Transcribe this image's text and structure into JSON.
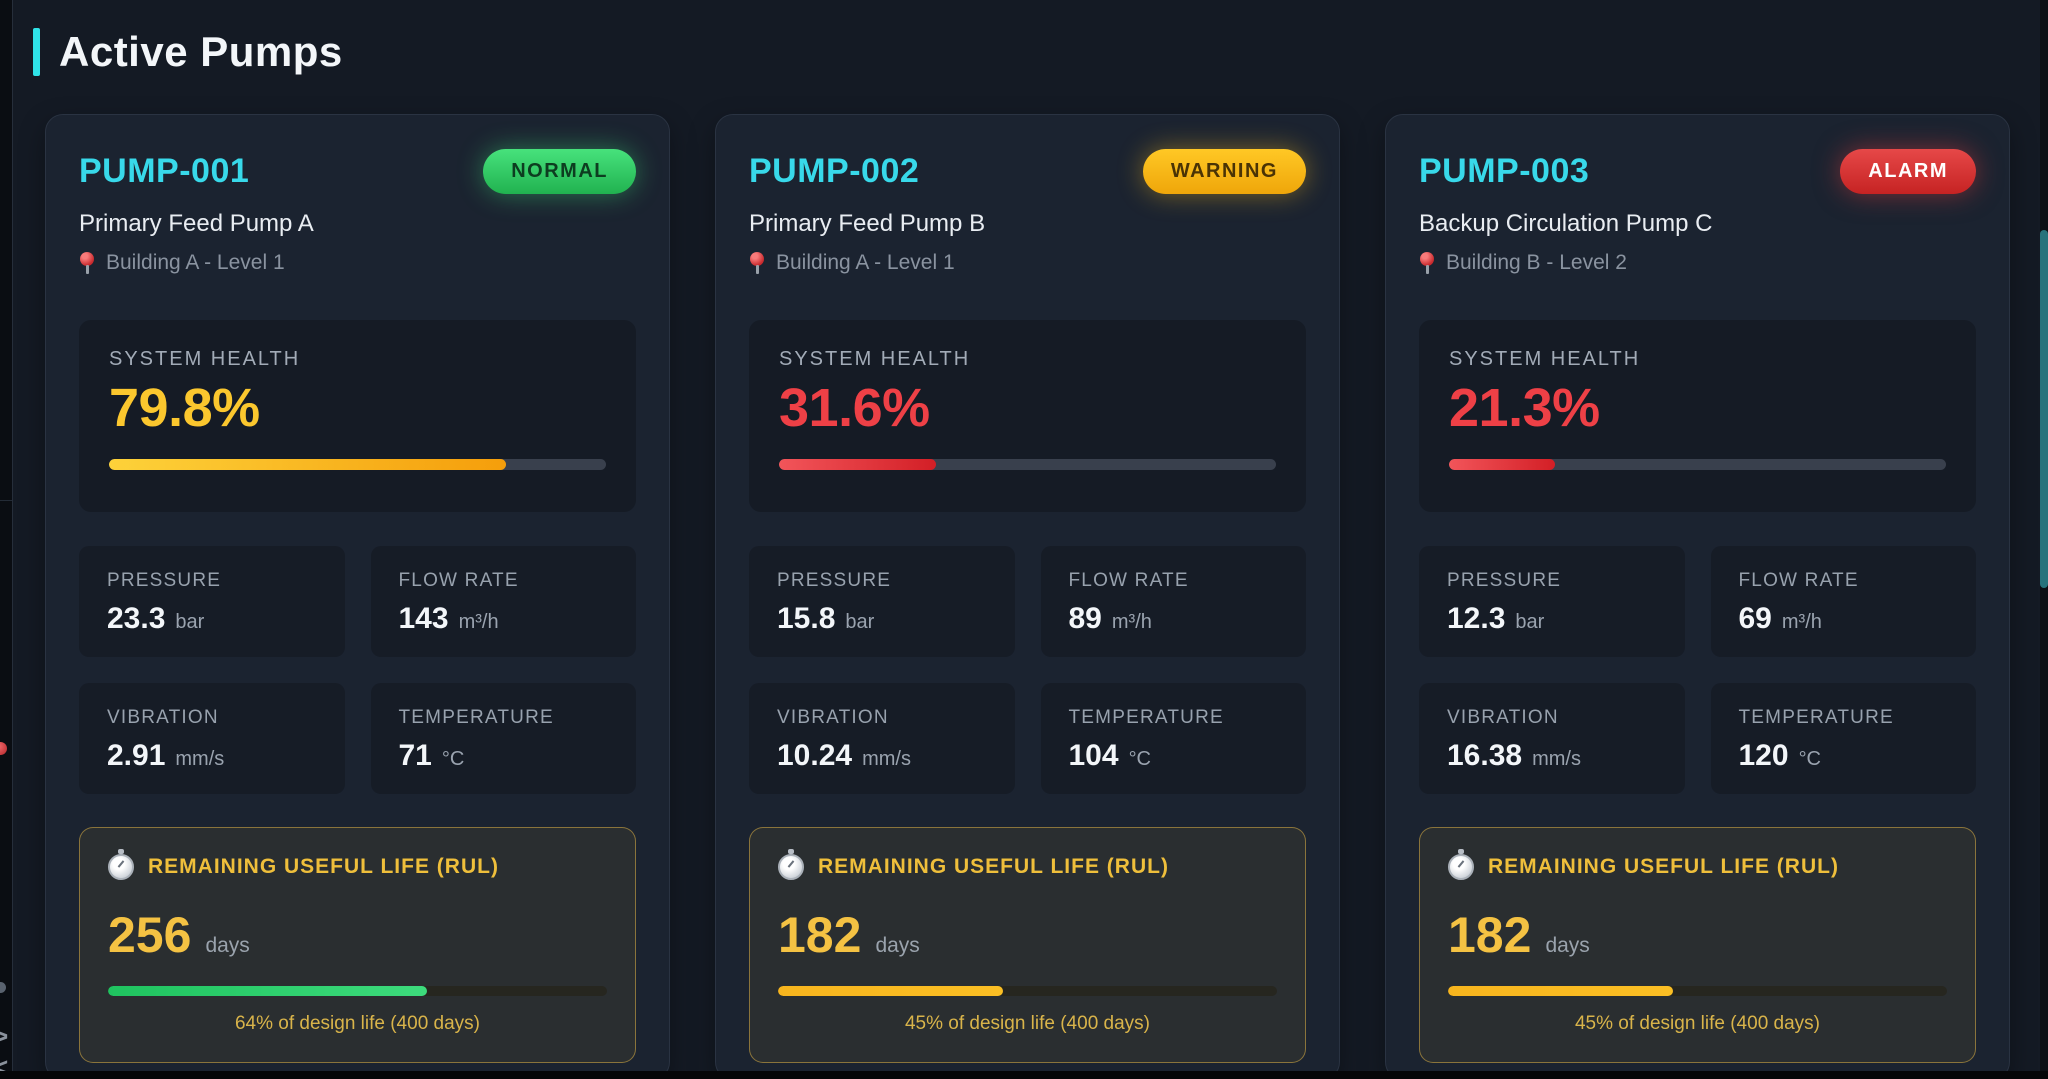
{
  "header": {
    "title": "Active Pumps"
  },
  "colors": {
    "accent_cyan": "#2fe3e8",
    "pump_id_cyan": "#38d9ea",
    "normal_green": "#2fd368",
    "warning_amber": "#f6b514",
    "alarm_red": "#d93434",
    "health_gold": "#fbc72e",
    "health_red": "#ee4046",
    "rul_gold": "#f4c243",
    "scrollbar_teal": "#27737c"
  },
  "pumps": [
    {
      "id": "PUMP-001",
      "status": "NORMAL",
      "name": "Primary Feed Pump A",
      "location": "Building A - Level 1",
      "health": {
        "label": "SYSTEM HEALTH",
        "display": "79.8%",
        "percent": 79.8
      },
      "metrics": [
        {
          "label": "PRESSURE",
          "value": "23.3",
          "unit": "bar"
        },
        {
          "label": "FLOW RATE",
          "value": "143",
          "unit": "m³/h"
        },
        {
          "label": "VIBRATION",
          "value": "2.91",
          "unit": "mm/s"
        },
        {
          "label": "TEMPERATURE",
          "value": "71",
          "unit": "°C"
        }
      ],
      "rul": {
        "label": "REMAINING USEFUL LIFE (RUL)",
        "days": "256",
        "unit": "days",
        "percent": 64,
        "note": "64% of design life (400 days)"
      }
    },
    {
      "id": "PUMP-002",
      "status": "WARNING",
      "name": "Primary Feed Pump B",
      "location": "Building A - Level 1",
      "health": {
        "label": "SYSTEM HEALTH",
        "display": "31.6%",
        "percent": 31.6
      },
      "metrics": [
        {
          "label": "PRESSURE",
          "value": "15.8",
          "unit": "bar"
        },
        {
          "label": "FLOW RATE",
          "value": "89",
          "unit": "m³/h"
        },
        {
          "label": "VIBRATION",
          "value": "10.24",
          "unit": "mm/s"
        },
        {
          "label": "TEMPERATURE",
          "value": "104",
          "unit": "°C"
        }
      ],
      "rul": {
        "label": "REMAINING USEFUL LIFE (RUL)",
        "days": "182",
        "unit": "days",
        "percent": 45,
        "note": "45% of design life (400 days)"
      }
    },
    {
      "id": "PUMP-003",
      "status": "ALARM",
      "name": "Backup Circulation Pump C",
      "location": "Building B - Level 2",
      "health": {
        "label": "SYSTEM HEALTH",
        "display": "21.3%",
        "percent": 21.3
      },
      "metrics": [
        {
          "label": "PRESSURE",
          "value": "12.3",
          "unit": "bar"
        },
        {
          "label": "FLOW RATE",
          "value": "69",
          "unit": "m³/h"
        },
        {
          "label": "VIBRATION",
          "value": "16.38",
          "unit": "mm/s"
        },
        {
          "label": "TEMPERATURE",
          "value": "120",
          "unit": "°C"
        }
      ],
      "rul": {
        "label": "REMAINING USEFUL LIFE (RUL)",
        "days": "182",
        "unit": "days",
        "percent": 45,
        "note": "45% of design life (400 days)"
      }
    }
  ]
}
